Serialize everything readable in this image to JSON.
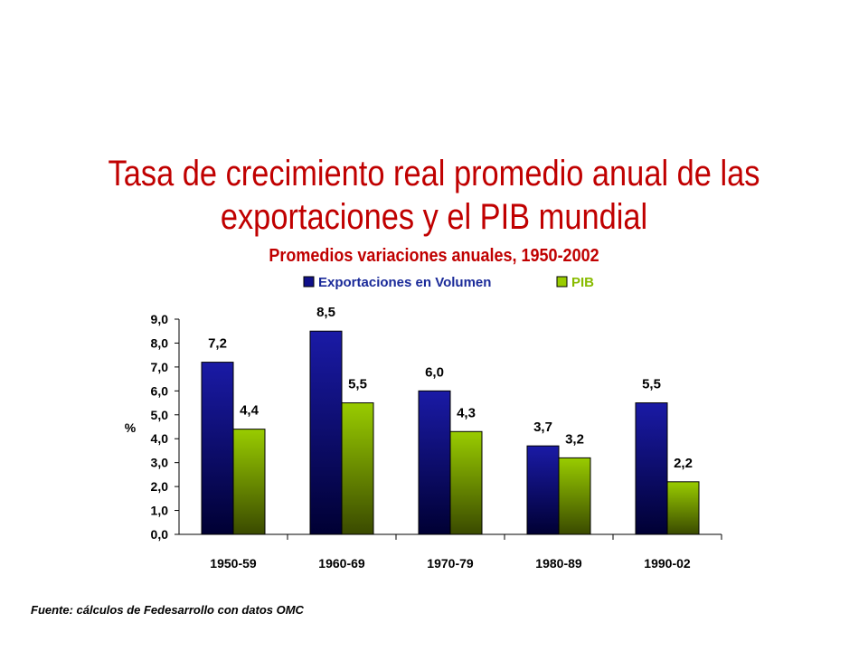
{
  "title_lines": [
    "Tasa de crecimiento real promedio anual de las",
    "exportaciones y el PIB mundial"
  ],
  "source": "Fuente: cálculos de Fedesarrollo con datos OMC",
  "chart_data": {
    "type": "bar",
    "title": "Tasa de crecimiento real promedio anual de las exportaciones y el PIB mundial",
    "subtitle": "Promedios variaciones anuales, 1950-2002",
    "categories": [
      "1950-59",
      "1960-69",
      "1970-79",
      "1980-89",
      "1990-02"
    ],
    "series": [
      {
        "name": "Exportaciones en Volumen",
        "values": [
          7.2,
          8.5,
          6.0,
          3.7,
          5.5
        ],
        "labels": [
          "7,2",
          "8,5",
          "6,0",
          "3,7",
          "5,5"
        ],
        "color_top": "#1a1aa6",
        "color_bottom": "#000033",
        "legend_text_color": "#1a2a99"
      },
      {
        "name": "PIB",
        "values": [
          4.4,
          5.5,
          4.3,
          3.2,
          2.2
        ],
        "labels": [
          "4,4",
          "5,5",
          "4,3",
          "3,2",
          "2,2"
        ],
        "color_top": "#99cc00",
        "color_bottom": "#3a4a00",
        "legend_text_color": "#88bb00"
      }
    ],
    "ylabel": "%",
    "ylim": [
      0,
      9
    ],
    "yticks": [
      "0,0",
      "1,0",
      "2,0",
      "3,0",
      "4,0",
      "5,0",
      "6,0",
      "7,0",
      "8,0",
      "9,0"
    ],
    "legend_position": "top",
    "grid": false
  }
}
